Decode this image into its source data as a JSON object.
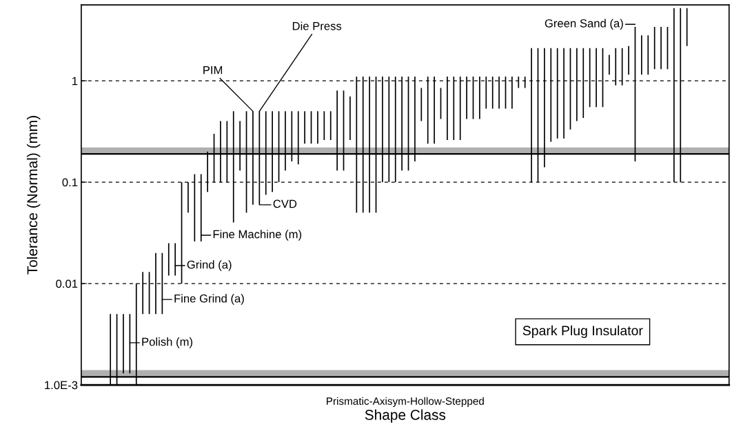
{
  "chart_data": {
    "type": "bar",
    "xlabel": "Shape Class",
    "ylabel": "Tolerance (Normal) (mm)",
    "categories": [
      null,
      null,
      null,
      null,
      null,
      null,
      null,
      null,
      null,
      null,
      null,
      null,
      null,
      null,
      null,
      null,
      null,
      null,
      null,
      null,
      null,
      null,
      null,
      null,
      null,
      null,
      null,
      null,
      null,
      null,
      null,
      null,
      null,
      null,
      null,
      null,
      null,
      null,
      null,
      null,
      null,
      null,
      null,
      null,
      null,
      null,
      null,
      null,
      null,
      null,
      null,
      null,
      null,
      null,
      null,
      null,
      null,
      null,
      null,
      null,
      null,
      null,
      null,
      null,
      null,
      null,
      null,
      null,
      null,
      null,
      null,
      null,
      null,
      null,
      null,
      null,
      null,
      null,
      null,
      null,
      null,
      null,
      null,
      null,
      null,
      null,
      null,
      null,
      null,
      null,
      null,
      null,
      null,
      null,
      null,
      null,
      null,
      null,
      null,
      null
    ],
    "base": [
      null,
      null,
      null,
      null,
      0.001,
      0.001,
      0.0013,
      0.0013,
      0.001,
      0.005,
      0.005,
      0.005,
      0.005,
      0.012,
      0.012,
      0.01,
      0.05,
      0.026,
      0.026,
      0.08,
      0.1,
      0.1,
      0.1,
      0.04,
      0.13,
      0.05,
      0.06,
      0.06,
      0.075,
      0.08,
      0.1,
      0.13,
      0.16,
      0.15,
      0.24,
      0.24,
      0.24,
      0.26,
      0.26,
      0.13,
      0.13,
      0.26,
      0.05,
      0.05,
      0.05,
      0.05,
      0.1,
      0.1,
      0.1,
      0.13,
      0.13,
      0.16,
      0.4,
      0.24,
      0.24,
      0.42,
      0.26,
      0.26,
      0.26,
      0.42,
      0.42,
      0.42,
      0.53,
      0.53,
      0.53,
      0.53,
      0.53,
      0.85,
      0.85,
      0.1,
      0.1,
      0.14,
      0.25,
      0.27,
      0.27,
      0.33,
      0.4,
      0.43,
      0.55,
      0.55,
      0.55,
      1.15,
      0.9,
      0.9,
      1.15,
      0.16,
      1.15,
      1.15,
      1.3,
      1.3,
      1.3,
      0.1,
      0.1,
      2.2,
      null,
      null,
      null,
      null,
      null,
      null
    ],
    "values": [
      null,
      null,
      null,
      null,
      0.004,
      0.004,
      0.0037,
      0.0037,
      0.009,
      0.008,
      0.008,
      0.015,
      0.015,
      0.013,
      0.013,
      0.09,
      0.05,
      0.094,
      0.094,
      0.12,
      0.2,
      0.3,
      0.3,
      0.46,
      0.27,
      0.45,
      0.44,
      0.44,
      0.425,
      0.42,
      0.4,
      0.37,
      0.34,
      0.35,
      0.26,
      0.26,
      0.26,
      0.24,
      0.24,
      0.67,
      0.67,
      0.44,
      1.05,
      1.05,
      1.05,
      1.05,
      1.0,
      1.0,
      1.0,
      0.97,
      0.97,
      0.94,
      0.45,
      0.86,
      0.86,
      0.43,
      0.84,
      0.84,
      0.84,
      0.68,
      0.68,
      0.68,
      0.57,
      0.57,
      0.57,
      0.57,
      0.57,
      0.25,
      0.25,
      2.0,
      2.0,
      1.96,
      1.85,
      1.83,
      1.83,
      1.77,
      1.7,
      1.67,
      1.55,
      1.55,
      1.55,
      0.65,
      1.2,
      1.2,
      1.05,
      3.24,
      1.65,
      1.65,
      2.1,
      2.1,
      2.1,
      5.1,
      5.1,
      3.0,
      null,
      null,
      null,
      null,
      null,
      null
    ],
    "color": "#000000",
    "log": "y",
    "ylim": [
      0.001,
      5.6
    ],
    "yticks": [
      {
        "value": 0.001,
        "label": "1.0E-3"
      },
      0.01,
      0.1,
      1
    ],
    "grid": "y",
    "line_style": "dashed",
    "bands": [
      {
        "axis": "y",
        "from": 0.19,
        "to": 0.22,
        "color": "#b0b0b0"
      },
      {
        "axis": "y",
        "from": 0.0012,
        "to": 0.0014,
        "color": "#b0b0b0"
      }
    ],
    "ref_lines": [
      {
        "axis": "y",
        "value": 0.19,
        "color": "#000000",
        "line_style": "solid"
      },
      {
        "axis": "y",
        "value": 0.0012,
        "color": "#000000",
        "line_style": "solid"
      }
    ],
    "annotations": [
      "Polish (m)",
      "Fine Grind (a)",
      "Grind (a)",
      "Fine Machine (m)",
      "CVD",
      "PIM",
      "Die Press",
      "Green Sand (a)",
      "Spark Plug Insulator",
      "Prismatic-Axisym-Hollow-Stepped"
    ]
  }
}
